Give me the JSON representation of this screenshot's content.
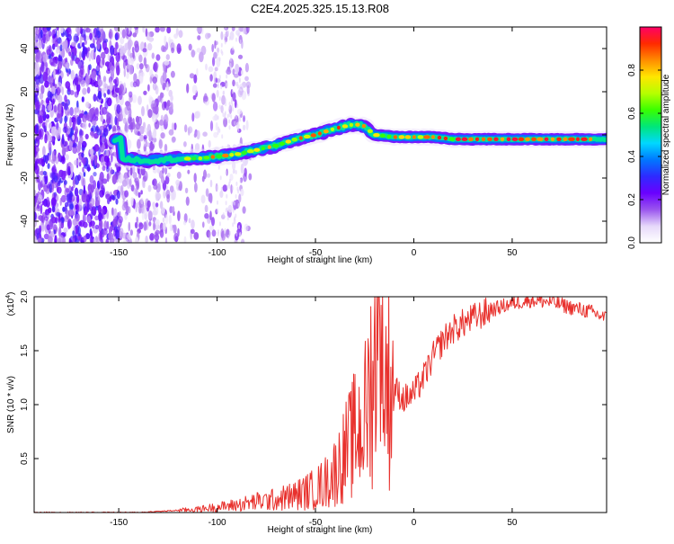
{
  "page_title": "C2E4.2025.325.15.13.R08",
  "colors": {
    "snr_line": "#e8312d",
    "axis": "#000000",
    "background": "#ffffff"
  },
  "chart_data": [
    {
      "type": "heatmap",
      "title": "C2E4.2025.325.15.13.R08",
      "xlabel": "Height of straight line (km)",
      "ylabel": "Frequency (Hz)",
      "xlim": [
        -193,
        98
      ],
      "ylim": [
        -50,
        50
      ],
      "xticks": [
        -150,
        -100,
        -50,
        0,
        50
      ],
      "yticks": [
        -40,
        -20,
        0,
        20,
        40
      ],
      "colorbar": {
        "label": "Normalized spectral amplitude",
        "range": [
          0,
          1
        ],
        "ticks": [
          "0.0",
          "0.2",
          "0.4",
          "0.6",
          "0.8"
        ],
        "tick_values": [
          0.0,
          0.2,
          0.4,
          0.6,
          0.8
        ],
        "colormap": [
          "#ffffff",
          "#e6d9fa",
          "#9a55ee",
          "#6a00ff",
          "#2e2aff",
          "#0078ff",
          "#00d8ff",
          "#00e67a",
          "#39ff00",
          "#b6ff00",
          "#ffe600",
          "#ff8c00",
          "#ff2a00",
          "#ff0066"
        ]
      },
      "ridge": {
        "x": [
          -148,
          -135,
          -120,
          -110,
          -100,
          -90,
          -80,
          -70,
          -60,
          -50,
          -40,
          -30,
          -25,
          -20,
          -10,
          0,
          10,
          20,
          40,
          60,
          80,
          98
        ],
        "freq_hz": [
          -11,
          -12,
          -11,
          -11,
          -10,
          -9,
          -7,
          -5,
          -2,
          0,
          3,
          5,
          4,
          0,
          -1,
          -1,
          -1,
          -2,
          -2,
          -2,
          -2,
          -2
        ]
      }
    },
    {
      "type": "line",
      "xlabel": "Height of straight line (km)",
      "ylabel": "SNR (10 * v/v)",
      "y_multiplier_label": "(x10",
      "y_multiplier_exponent": "4",
      "y_multiplier_suffix": ")",
      "xlim": [
        -193,
        98
      ],
      "ylim": [
        0,
        2.0
      ],
      "xticks": [
        -150,
        -100,
        -50,
        0,
        50
      ],
      "yticks": [
        0.5,
        1.0,
        1.5,
        2.0
      ],
      "ytick_labels": [
        "0.5",
        "1.0",
        "1.5",
        "2.0"
      ],
      "series": [
        {
          "name": "SNR",
          "x": [
            -193,
            -180,
            -160,
            -140,
            -130,
            -120,
            -110,
            -100,
            -90,
            -80,
            -70,
            -60,
            -50,
            -45,
            -40,
            -35,
            -30,
            -25,
            -22,
            -20,
            -17,
            -15,
            -10,
            -5,
            0,
            5,
            10,
            15,
            20,
            30,
            40,
            50,
            60,
            70,
            80,
            90,
            98
          ],
          "values": [
            0.0,
            0.0,
            0.0,
            0.0,
            0.01,
            0.02,
            0.03,
            0.05,
            0.07,
            0.1,
            0.12,
            0.16,
            0.22,
            0.28,
            0.38,
            0.55,
            0.72,
            0.85,
            1.2,
            1.45,
            1.35,
            1.25,
            1.15,
            1.05,
            1.1,
            1.25,
            1.45,
            1.6,
            1.7,
            1.8,
            1.88,
            1.94,
            1.97,
            1.95,
            1.9,
            1.86,
            1.8
          ]
        }
      ]
    }
  ]
}
